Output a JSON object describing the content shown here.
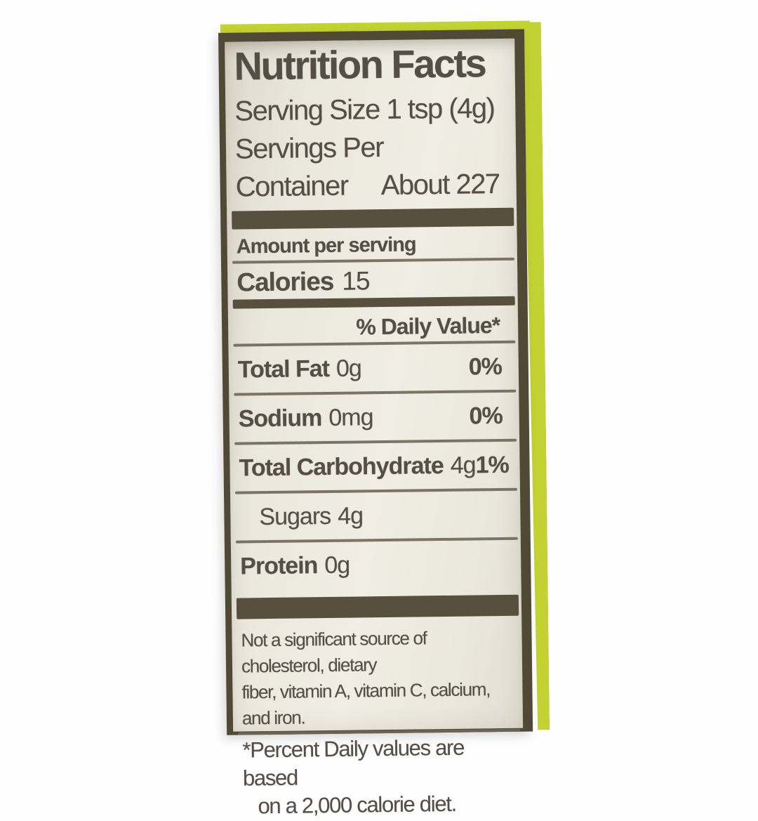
{
  "colors": {
    "page-bg": "#fefefe",
    "label-cream": "#ebe8de",
    "ink": "#554e46",
    "bar": "#57503f",
    "rule": "#6e6759",
    "edge": "#4f4936",
    "lime": "#c2d233"
  },
  "label": {
    "title": "Nutrition Facts",
    "serving": {
      "size_line": "Serving Size 1 tsp (4g)",
      "per_line1": "Servings Per",
      "per_line2": "Container",
      "per_value": "About 227"
    },
    "amount_header": "Amount per serving",
    "calories": {
      "label": "Calories",
      "value": "15"
    },
    "daily_value_header": "% Daily Value*",
    "nutrients": [
      {
        "name": "Total Fat",
        "amount": "0g",
        "dv": "0%"
      },
      {
        "name": "Sodium",
        "amount": "0mg",
        "dv": "0%"
      },
      {
        "name": "Total Carbohydrate",
        "amount": "4g",
        "dv": "1%"
      },
      {
        "name": "Sugars",
        "amount": "4g",
        "dv": ""
      },
      {
        "name": "Protein",
        "amount": "0g",
        "dv": ""
      }
    ],
    "footnote_sources": {
      "line1": "Not a significant source of cholesterol, dietary",
      "line2": "fiber, vitamin A, vitamin C, calcium, and iron."
    },
    "footnote_dv": {
      "line1": "*Percent Daily values are based",
      "line2": "on a 2,000 calorie diet."
    }
  }
}
